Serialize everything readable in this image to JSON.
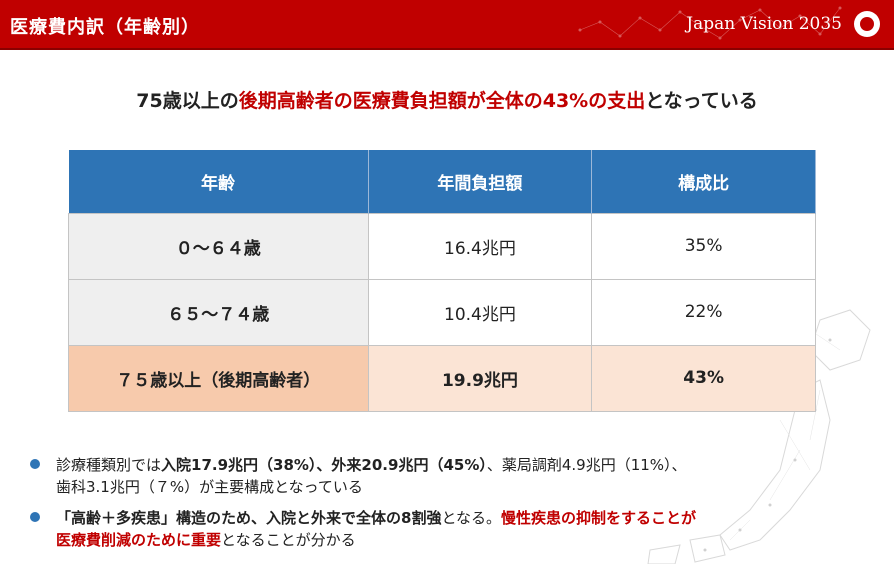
{
  "header": {
    "title": "医療費内訳（年齢別）",
    "brand": "Japan Vision 2035",
    "accent_color": "#c00000"
  },
  "headline": {
    "part1": "75歳以上の",
    "part2": "後期高齢者の医療費負担額が全体の43%の支出",
    "part3": "となっている"
  },
  "table": {
    "headers": [
      "年齢",
      "年間負担額",
      "構成比"
    ],
    "rows": [
      {
        "age": "０～６４歳",
        "amount": "16.4兆円",
        "ratio": "35%"
      },
      {
        "age": "６５～７４歳",
        "amount": "10.4兆円",
        "ratio": "22%"
      },
      {
        "age": "７５歳以上（後期高齢者）",
        "amount": "19.9兆円",
        "ratio": "43%"
      }
    ],
    "header_color": "#2e74b5",
    "highlight_color": "#fbe4d5"
  },
  "bullets": {
    "b1": {
      "t1": "診療種類別では",
      "t2": "入院17.9兆円（38%）、外来20.9兆円（45%）",
      "t3": "、薬局調剤4.9兆円（11%）、",
      "t4": "歯科3.1兆円（７%）が主要構成となっている"
    },
    "b2": {
      "t1": "「高齢＋多疾患」構造のため、入院と外来で全体の8割強",
      "t2": "となる。",
      "t3": "慢性疾患の抑制をすることが",
      "t4": "医療費削減のために重要",
      "t5": "となることが分かる"
    },
    "bullet_color": "#2e74b5"
  }
}
